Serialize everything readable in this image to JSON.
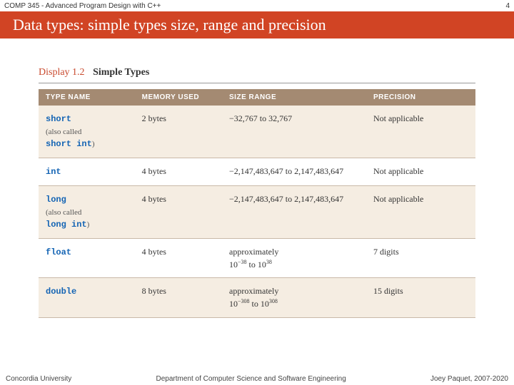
{
  "header": {
    "course": "COMP 345 - Advanced Program Design with C++",
    "slide_number": "4"
  },
  "title": "Data types: simple types size, range and precision",
  "caption": {
    "display_label": "Display 1.2",
    "display_title": "Simple Types"
  },
  "table": {
    "header_bg": "#a48a72",
    "alt_row_bg": "#f5ede2",
    "border_color": "#c9b9a8",
    "code_color": "#1464b4",
    "columns": [
      "TYPE NAME",
      "MEMORY USED",
      "SIZE RANGE",
      "PRECISION"
    ],
    "rows": [
      {
        "name_code": "short",
        "name_note_prefix": "(also called",
        "name_note_code": "short int",
        "name_note_suffix": ")",
        "memory": "2 bytes",
        "range_html": "−32,767 to 32,767",
        "precision": "Not applicable",
        "alt": true
      },
      {
        "name_code": "int",
        "memory": "4 bytes",
        "range_html": "−2,147,483,647 to 2,147,483,647",
        "precision": "Not applicable",
        "alt": false
      },
      {
        "name_code": "long",
        "name_note_prefix": "(also called",
        "name_note_code": "long int",
        "name_note_suffix": ")",
        "memory": "4 bytes",
        "range_html": "−2,147,483,647 to 2,147,483,647",
        "precision": "Not applicable",
        "alt": true
      },
      {
        "name_code": "float",
        "memory": "4 bytes",
        "range_approx": "approximately",
        "range_base1": "10",
        "range_exp1": "−38",
        "range_mid": " to ",
        "range_base2": "10",
        "range_exp2": "38",
        "precision": "7 digits",
        "alt": false
      },
      {
        "name_code": "double",
        "memory": "8 bytes",
        "range_approx": "approximately",
        "range_base1": "10",
        "range_exp1": "−308",
        "range_mid": " to ",
        "range_base2": "10",
        "range_exp2": "308",
        "precision": "15 digits",
        "alt": true
      }
    ]
  },
  "footer": {
    "left": "Concordia University",
    "center": "Department of Computer Science and Software Engineering",
    "right": "Joey Paquet, 2007-2020"
  },
  "colors": {
    "title_band": "#d14424",
    "title_text": "#ffffff"
  }
}
